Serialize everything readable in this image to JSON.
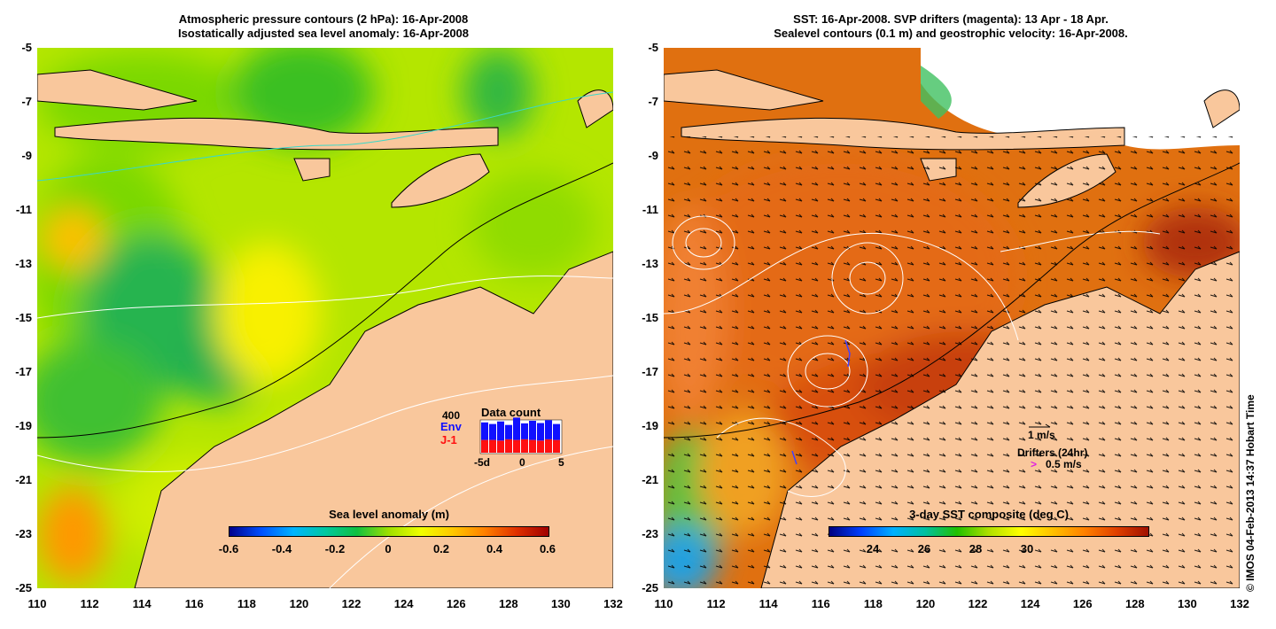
{
  "left": {
    "title_line1": "Atmospheric pressure contours (2 hPa): 16-Apr-2008",
    "title_line2": "Isostatically adjusted sea level anomaly: 16-Apr-2008",
    "colorbar_title": "Sea level anomaly (m)",
    "colorbar_ticks": [
      "-0.6",
      "-0.4",
      "-0.2",
      "0",
      "0.2",
      "0.4",
      "0.6"
    ],
    "inset": {
      "title": "Data count",
      "max_label": "400",
      "series": [
        {
          "name": "Env",
          "color": "#1010ff"
        },
        {
          "name": "J-1",
          "color": "#ff1010"
        }
      ],
      "x_labels": [
        "-5d",
        "0",
        "5"
      ]
    }
  },
  "right": {
    "title_line1": "SST: 16-Apr-2008. SVP drifters (magenta): 13 Apr - 18 Apr.",
    "title_line2": "Sealevel contours (0.1 m) and geostrophic velocity: 16-Apr-2008.",
    "colorbar_title": "3-day SST composite (deg C)",
    "colorbar_ticks": [
      "24",
      "26",
      "28",
      "30"
    ],
    "velocity_scale_label": "1 m/s",
    "drifter_title": "Drifters (24hr)",
    "drifter_symbol": ">",
    "drifter_scale_label": "0.5 m/s"
  },
  "y_ticks": [
    "-5",
    "-7",
    "-9",
    "-11",
    "-13",
    "-15",
    "-17",
    "-19",
    "-21",
    "-23",
    "-25"
  ],
  "x_ticks": [
    "110",
    "112",
    "114",
    "116",
    "118",
    "120",
    "122",
    "124",
    "126",
    "128",
    "130",
    "132"
  ],
  "credit": "© IMOS 04-Feb-2013 14:37 Hobart Time",
  "colors": {
    "land": "#f9c79c",
    "sla_palette": [
      "#00008c",
      "#0050ff",
      "#00b4ff",
      "#00c8a0",
      "#10c040",
      "#a0e000",
      "#f0ff00",
      "#ffc800",
      "#ff8000",
      "#e03000",
      "#a00000"
    ],
    "sst_palette": [
      "#000080",
      "#0040ff",
      "#00b0ff",
      "#00c0a0",
      "#20c000",
      "#b0e000",
      "#ffff00",
      "#ffc000",
      "#ff8000",
      "#e04000",
      "#a01000"
    ]
  }
}
